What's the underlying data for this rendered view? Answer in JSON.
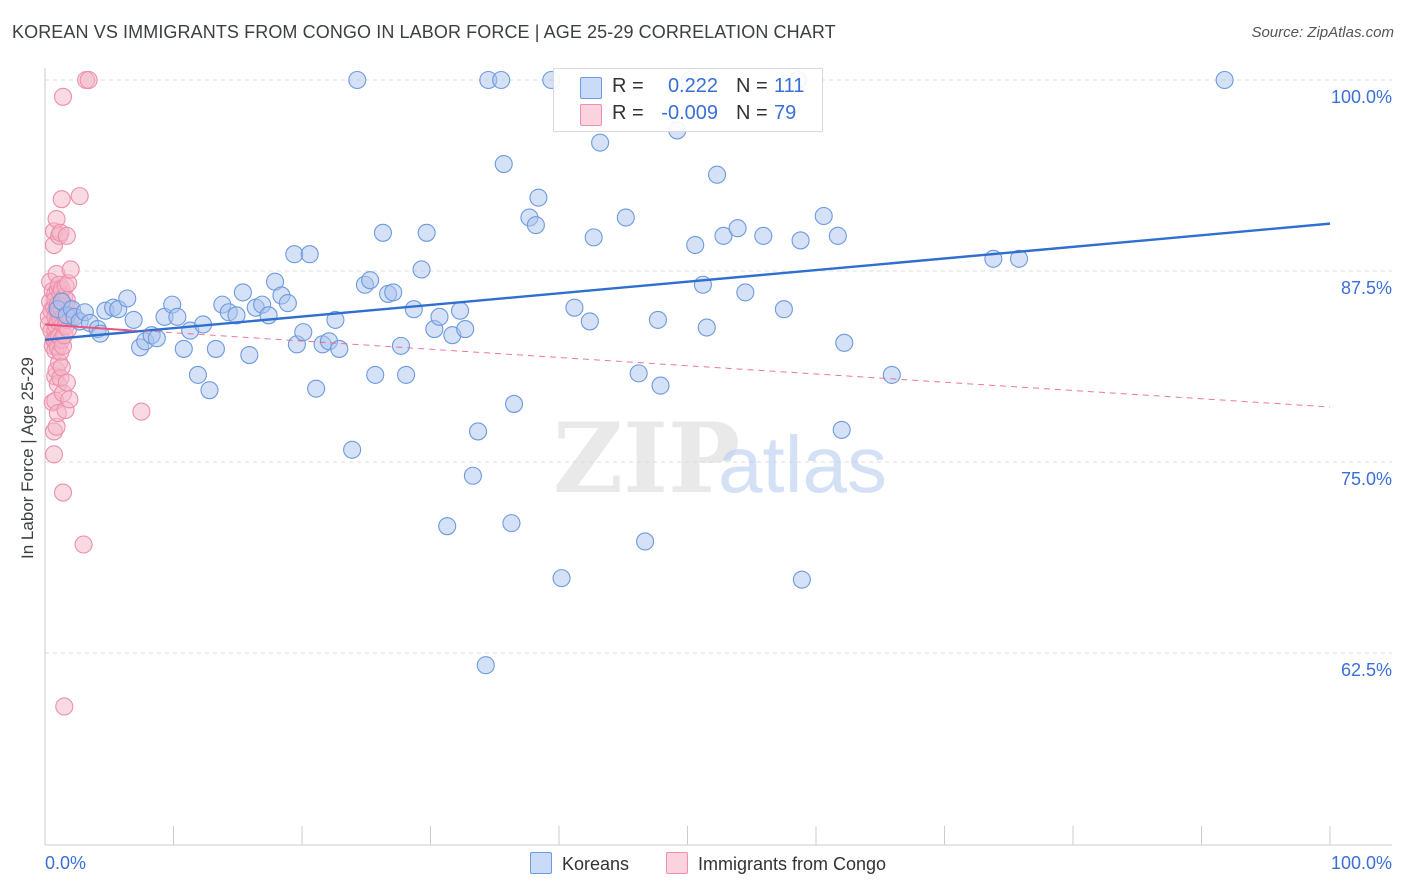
{
  "title": "KOREAN VS IMMIGRANTS FROM CONGO IN LABOR FORCE | AGE 25-29 CORRELATION CHART",
  "source": "Source: ZipAtlas.com",
  "watermark": {
    "zip": "ZIP",
    "atlas": "atlas"
  },
  "legend_stats": [
    {
      "r_label": "R =",
      "r_value": "0.222",
      "n_label": "N =",
      "n_value": "111",
      "color": "#a9c4ee"
    },
    {
      "r_label": "R =",
      "r_value": "-0.009",
      "n_label": "N =",
      "n_value": "79",
      "color": "#f4b6c8"
    }
  ],
  "chart_data": {
    "type": "scatter",
    "title": "KOREAN VS IMMIGRANTS FROM CONGO IN LABOR FORCE | AGE 25-29 CORRELATION CHART",
    "xlabel": "",
    "ylabel": "In Labor Force | Age 25-29",
    "xlim": [
      0,
      100
    ],
    "ylim": [
      50,
      101
    ],
    "x_tick_labels": [
      "0.0%",
      "100.0%"
    ],
    "y_ticks": [
      {
        "value": 100,
        "label": "100.0%"
      },
      {
        "value": 87.5,
        "label": "87.5%"
      },
      {
        "value": 75,
        "label": "75.0%"
      },
      {
        "value": 62.5,
        "label": "62.5%"
      }
    ],
    "grid": true,
    "legend_position": "bottom",
    "series": [
      {
        "name": "Koreans",
        "color": "#a9c4ee",
        "stroke": "#6d9ae0",
        "line_color": "#2f6fcf",
        "trend": [
          [
            0,
            83.0
          ],
          [
            100,
            90.6
          ]
        ],
        "points": [
          [
            1.0,
            85.0
          ],
          [
            1.3,
            85.5
          ],
          [
            1.7,
            84.6
          ],
          [
            2.1,
            85.0
          ],
          [
            2.3,
            84.5
          ],
          [
            2.7,
            84.2
          ],
          [
            3.1,
            84.8
          ],
          [
            3.5,
            84.1
          ],
          [
            4.1,
            83.7
          ],
          [
            4.3,
            83.4
          ],
          [
            4.7,
            84.9
          ],
          [
            5.3,
            85.1
          ],
          [
            5.7,
            85.0
          ],
          [
            6.4,
            85.7
          ],
          [
            6.9,
            84.3
          ],
          [
            7.4,
            82.5
          ],
          [
            7.8,
            82.9
          ],
          [
            8.3,
            83.3
          ],
          [
            8.7,
            83.1
          ],
          [
            9.3,
            84.5
          ],
          [
            9.9,
            85.3
          ],
          [
            10.3,
            84.5
          ],
          [
            10.8,
            82.4
          ],
          [
            11.3,
            83.6
          ],
          [
            11.9,
            80.7
          ],
          [
            12.3,
            84.0
          ],
          [
            12.8,
            79.7
          ],
          [
            13.3,
            82.4
          ],
          [
            13.8,
            85.3
          ],
          [
            14.3,
            84.8
          ],
          [
            14.9,
            84.6
          ],
          [
            15.4,
            86.1
          ],
          [
            15.9,
            82.0
          ],
          [
            16.4,
            85.1
          ],
          [
            16.9,
            85.3
          ],
          [
            17.4,
            84.6
          ],
          [
            17.9,
            86.8
          ],
          [
            18.4,
            85.9
          ],
          [
            18.9,
            85.4
          ],
          [
            19.4,
            88.6
          ],
          [
            19.6,
            82.7
          ],
          [
            20.1,
            83.5
          ],
          [
            20.6,
            88.6
          ],
          [
            21.1,
            79.8
          ],
          [
            21.6,
            82.7
          ],
          [
            22.1,
            82.9
          ],
          [
            22.6,
            84.3
          ],
          [
            22.9,
            82.4
          ],
          [
            23.9,
            75.8
          ],
          [
            24.3,
            100.0
          ],
          [
            24.9,
            86.6
          ],
          [
            25.3,
            86.9
          ],
          [
            25.7,
            80.7
          ],
          [
            26.3,
            90.0
          ],
          [
            26.7,
            86.0
          ],
          [
            27.1,
            86.1
          ],
          [
            27.7,
            82.6
          ],
          [
            28.1,
            80.7
          ],
          [
            28.7,
            85.0
          ],
          [
            29.3,
            87.6
          ],
          [
            29.7,
            90.0
          ],
          [
            30.3,
            83.7
          ],
          [
            30.7,
            84.5
          ],
          [
            31.3,
            70.8
          ],
          [
            31.7,
            83.3
          ],
          [
            32.3,
            84.9
          ],
          [
            32.7,
            83.7
          ],
          [
            33.3,
            74.1
          ],
          [
            33.7,
            77.0
          ],
          [
            34.3,
            61.7
          ],
          [
            34.5,
            100.0
          ],
          [
            35.5,
            100.0
          ],
          [
            35.7,
            94.5
          ],
          [
            36.3,
            71.0
          ],
          [
            36.5,
            78.8
          ],
          [
            37.7,
            91.0
          ],
          [
            38.2,
            90.5
          ],
          [
            38.4,
            92.3
          ],
          [
            39.4,
            100.0
          ],
          [
            40.2,
            67.4
          ],
          [
            41.2,
            85.1
          ],
          [
            42.4,
            84.2
          ],
          [
            42.7,
            89.7
          ],
          [
            43.2,
            95.9
          ],
          [
            45.2,
            91.0
          ],
          [
            46.2,
            80.8
          ],
          [
            46.7,
            69.8
          ],
          [
            47.7,
            84.3
          ],
          [
            47.9,
            80.0
          ],
          [
            49.2,
            96.7
          ],
          [
            50.2,
            100.0
          ],
          [
            50.6,
            89.2
          ],
          [
            51.2,
            86.6
          ],
          [
            51.5,
            83.8
          ],
          [
            52.3,
            93.8
          ],
          [
            52.8,
            89.8
          ],
          [
            53.9,
            90.3
          ],
          [
            54.5,
            86.1
          ],
          [
            55.9,
            89.8
          ],
          [
            57.5,
            85.0
          ],
          [
            58.6,
            100.0
          ],
          [
            58.8,
            89.5
          ],
          [
            58.9,
            67.3
          ],
          [
            60.6,
            91.1
          ],
          [
            61.7,
            89.8
          ],
          [
            62.0,
            77.1
          ],
          [
            62.2,
            82.8
          ],
          [
            65.9,
            80.7
          ],
          [
            73.8,
            88.3
          ],
          [
            75.8,
            88.3
          ],
          [
            91.8,
            100.0
          ]
        ]
      },
      {
        "name": "Immigrants from Congo",
        "color": "#f4b6c8",
        "stroke": "#ee8fab",
        "line_color": "#e8567f",
        "trend_solid": [
          [
            0,
            84.0
          ],
          [
            6.8,
            83.6
          ]
        ],
        "trend": [
          [
            0,
            84.0
          ],
          [
            100,
            78.6
          ]
        ],
        "points": [
          [
            0.3,
            84.5
          ],
          [
            0.3,
            84.0
          ],
          [
            0.4,
            86.8
          ],
          [
            0.4,
            85.5
          ],
          [
            0.5,
            84.9
          ],
          [
            0.5,
            83.6
          ],
          [
            0.6,
            86.2
          ],
          [
            0.6,
            82.6
          ],
          [
            0.6,
            78.9
          ],
          [
            0.7,
            90.1
          ],
          [
            0.7,
            89.2
          ],
          [
            0.7,
            85.1
          ],
          [
            0.7,
            83.0
          ],
          [
            0.7,
            77.0
          ],
          [
            0.7,
            75.5
          ],
          [
            0.8,
            86.0
          ],
          [
            0.8,
            85.6
          ],
          [
            0.8,
            84.5
          ],
          [
            0.8,
            83.6
          ],
          [
            0.8,
            82.9
          ],
          [
            0.8,
            82.3
          ],
          [
            0.8,
            80.6
          ],
          [
            0.8,
            79.0
          ],
          [
            0.9,
            90.9
          ],
          [
            0.9,
            87.3
          ],
          [
            0.9,
            85.0
          ],
          [
            0.9,
            83.9
          ],
          [
            0.9,
            83.1
          ],
          [
            0.9,
            81.0
          ],
          [
            0.9,
            77.3
          ],
          [
            1.0,
            86.3
          ],
          [
            1.0,
            85.3
          ],
          [
            1.0,
            84.2
          ],
          [
            1.0,
            82.5
          ],
          [
            1.0,
            80.1
          ],
          [
            1.0,
            78.2
          ],
          [
            1.1,
            89.8
          ],
          [
            1.1,
            86.6
          ],
          [
            1.1,
            84.8
          ],
          [
            1.1,
            83.2
          ],
          [
            1.1,
            81.5
          ],
          [
            1.2,
            90.0
          ],
          [
            1.2,
            86.0
          ],
          [
            1.2,
            84.4
          ],
          [
            1.2,
            82.2
          ],
          [
            1.2,
            80.5
          ],
          [
            1.3,
            92.2
          ],
          [
            1.3,
            86.3
          ],
          [
            1.3,
            85.0
          ],
          [
            1.3,
            83.0
          ],
          [
            1.3,
            81.2
          ],
          [
            1.4,
            98.9
          ],
          [
            1.4,
            84.0
          ],
          [
            1.4,
            82.6
          ],
          [
            1.4,
            79.5
          ],
          [
            1.4,
            73.0
          ],
          [
            1.5,
            85.8
          ],
          [
            1.5,
            84.6
          ],
          [
            1.5,
            83.3
          ],
          [
            1.5,
            59.0
          ],
          [
            1.6,
            86.5
          ],
          [
            1.6,
            85.2
          ],
          [
            1.6,
            83.9
          ],
          [
            1.6,
            78.4
          ],
          [
            1.7,
            89.8
          ],
          [
            1.7,
            85.6
          ],
          [
            1.7,
            84.3
          ],
          [
            1.7,
            80.2
          ],
          [
            1.8,
            86.7
          ],
          [
            1.8,
            83.7
          ],
          [
            1.9,
            85.0
          ],
          [
            1.9,
            79.1
          ],
          [
            2.0,
            87.6
          ],
          [
            2.0,
            84.5
          ],
          [
            2.7,
            92.4
          ],
          [
            3.0,
            69.6
          ],
          [
            3.2,
            100.0
          ],
          [
            3.4,
            100.0
          ],
          [
            7.5,
            78.3
          ]
        ]
      }
    ]
  },
  "bottom_legend": [
    {
      "label": "Koreans",
      "color": "#a9c4ee"
    },
    {
      "label": "Immigrants from Congo",
      "color": "#f4b6c8"
    }
  ]
}
